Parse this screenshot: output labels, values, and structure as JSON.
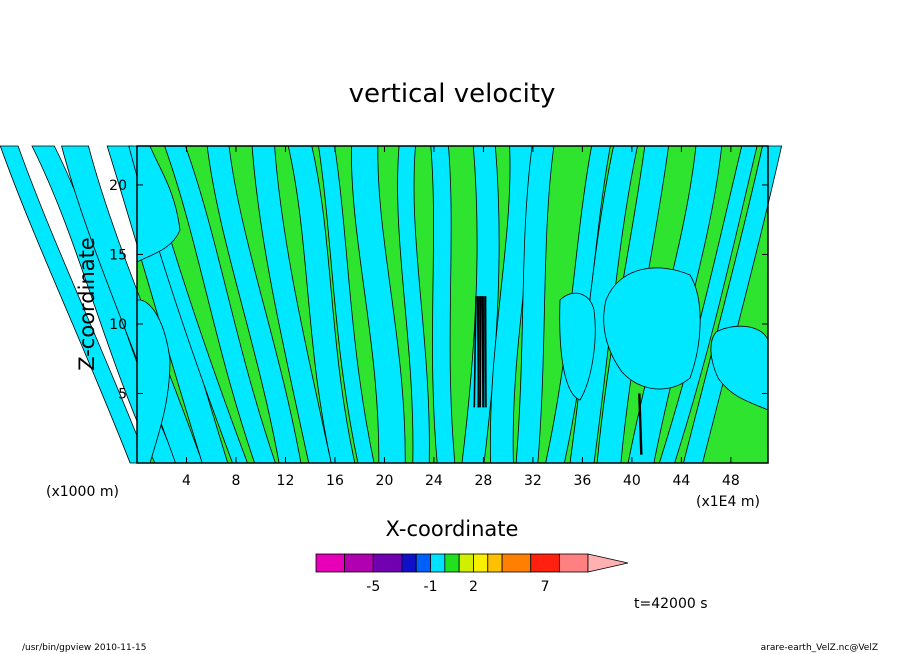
{
  "chart_data": {
    "type": "heatmap",
    "title": "vertical velocity",
    "xlabel": "X-coordinate",
    "ylabel": "Z-coordinate",
    "x_unit_left": "(x1000 m)",
    "x_unit_right": "(x1E4 m)",
    "xlim": [
      0,
      51
    ],
    "ylim": [
      0,
      22.8
    ],
    "x_ticks": [
      4,
      8,
      12,
      16,
      20,
      24,
      28,
      32,
      36,
      40,
      44,
      48
    ],
    "y_ticks": [
      5,
      10,
      15,
      20
    ],
    "time_label": "t=42000 s",
    "field_colors": {
      "positive": "#2ee42e",
      "negative": "#00e8ff",
      "line": "#000000"
    },
    "colorbar": {
      "levels": [
        "-5",
        "-1",
        "2",
        "7"
      ],
      "level_values": [
        -5,
        -1,
        2,
        7
      ],
      "boundaries": [
        -9,
        -7,
        -5,
        -3,
        -2,
        -1,
        0,
        1,
        2,
        3,
        4,
        6,
        8,
        10,
        12
      ],
      "colors": [
        "#e800b8",
        "#b000b0",
        "#7000b0",
        "#1010c8",
        "#0060ff",
        "#00e0ff",
        "#20e020",
        "#d0f000",
        "#f8f000",
        "#ffc000",
        "#ff8000",
        "#ff2010",
        "#ff8080",
        "#ffb0b0"
      ]
    }
  },
  "footer": {
    "left": "/usr/bin/gpview   2010-11-15",
    "right": "arare-earth_VelZ.nc@VelZ"
  }
}
